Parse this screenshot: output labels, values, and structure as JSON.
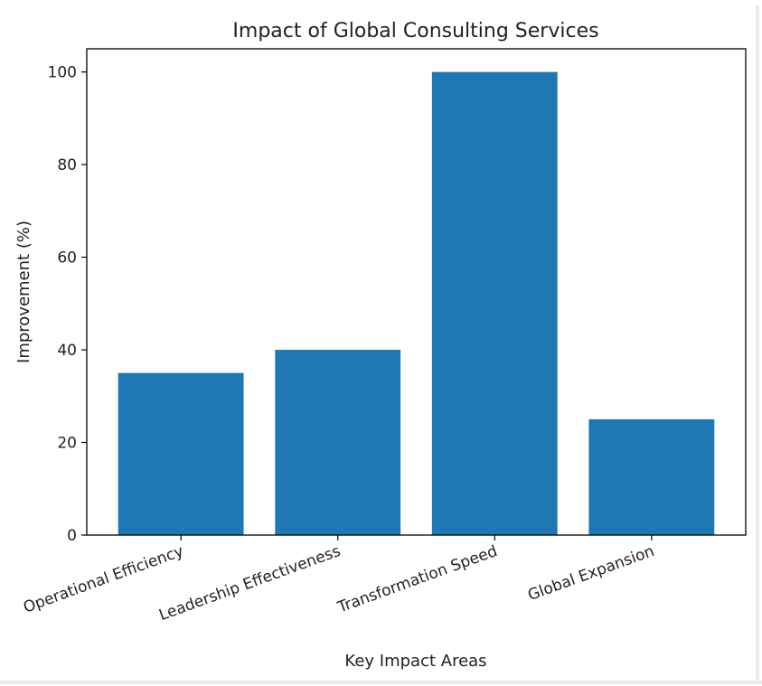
{
  "chart_data": {
    "type": "bar",
    "title": "Impact of Global Consulting Services",
    "xlabel": "Key Impact Areas",
    "ylabel": "Improvement (%)",
    "categories": [
      "Operational Efficiency",
      "Leadership Effectiveness",
      "Transformation Speed",
      "Global Expansion"
    ],
    "values": [
      35,
      40,
      100,
      25
    ],
    "ylim": [
      0,
      105
    ],
    "yticks": [
      0,
      20,
      40,
      60,
      80,
      100
    ],
    "bar_color": "#1f77b4",
    "grid": false,
    "legend": "none"
  }
}
